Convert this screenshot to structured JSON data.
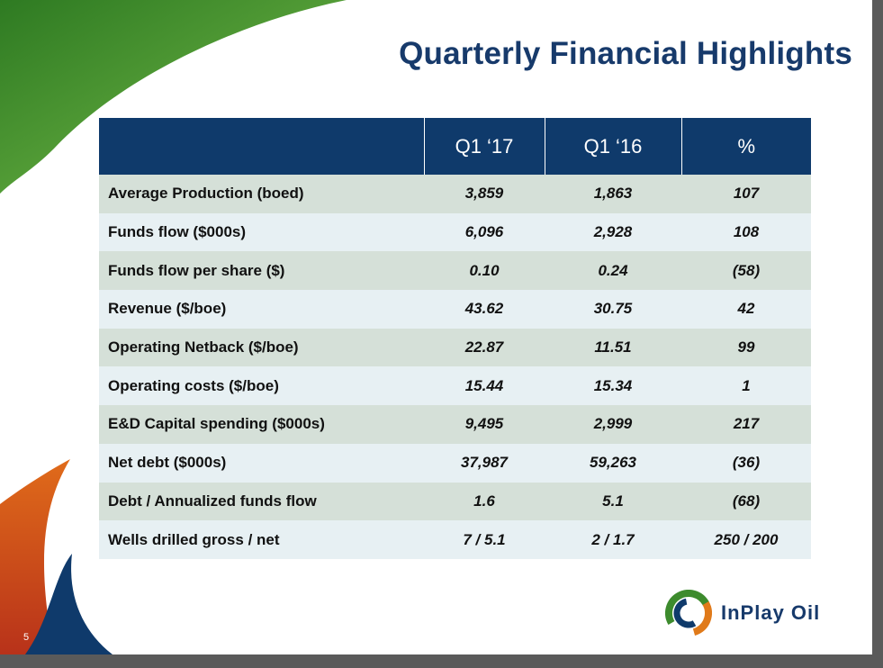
{
  "slide": {
    "title": "Quarterly Financial Highlights",
    "page_number": "5"
  },
  "table": {
    "columns": [
      "",
      "Q1 ‘17",
      "Q1 ‘16",
      "%"
    ],
    "rows": [
      {
        "label": "Average Production (boed)",
        "q1_17": "3,859",
        "q1_16": "1,863",
        "pct": "107"
      },
      {
        "label": "Funds flow ($000s)",
        "q1_17": "6,096",
        "q1_16": "2,928",
        "pct": "108"
      },
      {
        "label": "Funds flow per share ($)",
        "q1_17": "0.10",
        "q1_16": "0.24",
        "pct": "(58)"
      },
      {
        "label": "Revenue ($/boe)",
        "q1_17": "43.62",
        "q1_16": "30.75",
        "pct": "42"
      },
      {
        "label": "Operating Netback ($/boe)",
        "q1_17": "22.87",
        "q1_16": "11.51",
        "pct": "99"
      },
      {
        "label": "Operating costs ($/boe)",
        "q1_17": "15.44",
        "q1_16": "15.34",
        "pct": "1"
      },
      {
        "label": "E&D Capital spending ($000s)",
        "q1_17": "9,495",
        "q1_16": "2,999",
        "pct": "217"
      },
      {
        "label": "Net debt ($000s)",
        "q1_17": "37,987",
        "q1_16": "59,263",
        "pct": "(36)"
      },
      {
        "label": "Debt / Annualized funds flow",
        "q1_17": "1.6",
        "q1_16": "5.1",
        "pct": "(68)"
      },
      {
        "label": "Wells drilled gross / net",
        "q1_17": "7 / 5.1",
        "q1_16": "2 / 1.7",
        "pct": "250 / 200"
      }
    ]
  },
  "logo": {
    "icon": "inplay-swirl-icon",
    "text": "InPlay Oil"
  },
  "colors": {
    "title": "#173a6b",
    "header_bg": "#0f3a6b",
    "row_odd": "#d5e0d8",
    "row_even": "#e7f0f3",
    "green_swoosh": "#3d8b2d",
    "orange_swoosh": "#d2691e",
    "blue_swoosh": "#0f3a6b"
  }
}
